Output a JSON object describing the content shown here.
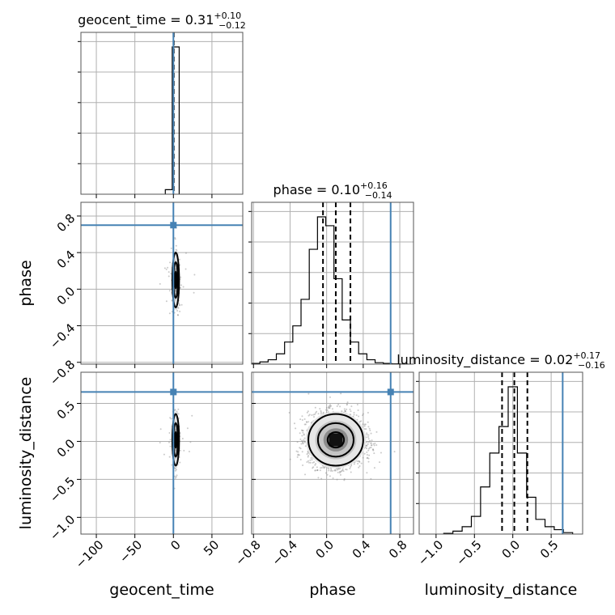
{
  "chart_data": {
    "type": "corner",
    "parameters": [
      "geocent_time",
      "phase",
      "luminosity_distance"
    ],
    "axis_labels": {
      "geocent_time": "geocent_time",
      "phase": "phase",
      "luminosity_distance": "luminosity_distance"
    },
    "titles": [
      {
        "param": "geocent_time",
        "text": "geocent_time = 0.31",
        "plus": "+0.10",
        "minus": "−0.12"
      },
      {
        "param": "phase",
        "text": "phase = 0.10",
        "plus": "+0.16",
        "minus": "−0.14"
      },
      {
        "param": "luminosity_distance",
        "text": "luminosity_distance = 0.02",
        "plus": "+0.17",
        "minus": "−0.16"
      }
    ],
    "ranges": {
      "geocent_time": [
        -120,
        90
      ],
      "phase": [
        -0.82,
        0.95
      ],
      "luminosity_distance": [
        -1.22,
        0.91
      ]
    },
    "ticks": {
      "geocent_time": {
        "values": [
          -100,
          -50,
          0,
          50
        ],
        "labels": [
          "−100",
          "−50",
          "0",
          "50"
        ]
      },
      "phase": {
        "values": [
          -0.8,
          -0.4,
          0.0,
          0.4,
          0.8
        ],
        "labels": [
          "−0.8",
          "−0.4",
          "0.0",
          "0.4",
          "0.8"
        ]
      },
      "luminosity_distance": {
        "values": [
          -1.0,
          -0.5,
          0.0,
          0.5
        ],
        "labels": [
          "−1.0",
          "−0.5",
          "0.0",
          "0.5"
        ]
      }
    },
    "truths": {
      "geocent_time": 0.0,
      "phase": 0.7,
      "luminosity_distance": 0.65
    },
    "quantiles": {
      "geocent_time": [
        0.19,
        0.31,
        0.41
      ],
      "phase": [
        -0.04,
        0.1,
        0.26
      ],
      "luminosity_distance": [
        -0.14,
        0.02,
        0.19
      ]
    },
    "histograms": {
      "geocent_time": {
        "bins": [
          -10.5,
          -1.5,
          7.5
        ],
        "counts": [
          0.03,
          0.97
        ]
      },
      "phase": {
        "bins": [
          -0.82,
          -0.73,
          -0.64,
          -0.55,
          -0.46,
          -0.37,
          -0.28,
          -0.19,
          -0.1,
          -0.01,
          0.08,
          0.17,
          0.26,
          0.35,
          0.44,
          0.53,
          0.62,
          0.71,
          0.8,
          0.89
        ],
        "counts": [
          0.005,
          0.015,
          0.03,
          0.07,
          0.15,
          0.26,
          0.44,
          0.78,
          1.0,
          0.94,
          0.58,
          0.3,
          0.15,
          0.07,
          0.03,
          0.01,
          0.005,
          0.002,
          0.001
        ]
      },
      "luminosity_distance": {
        "bins": [
          -0.9,
          -0.78,
          -0.66,
          -0.54,
          -0.42,
          -0.3,
          -0.18,
          -0.06,
          0.06,
          0.18,
          0.3,
          0.42,
          0.54,
          0.66,
          0.78
        ],
        "counts": [
          0.005,
          0.02,
          0.05,
          0.12,
          0.32,
          0.55,
          0.73,
          1.0,
          0.55,
          0.25,
          0.1,
          0.05,
          0.03,
          0.01
        ]
      }
    },
    "joint": {
      "geocent_time__phase": {
        "mean": [
          3,
          0.1
        ],
        "std": [
          2.2,
          0.15
        ]
      },
      "geocent_time__luminosity_distance": {
        "mean": [
          3,
          0.02
        ],
        "std": [
          2.2,
          0.17
        ]
      },
      "phase__luminosity_distance": {
        "mean": [
          0.1,
          0.02
        ],
        "std": [
          0.15,
          0.17
        ]
      }
    },
    "grid": true
  }
}
